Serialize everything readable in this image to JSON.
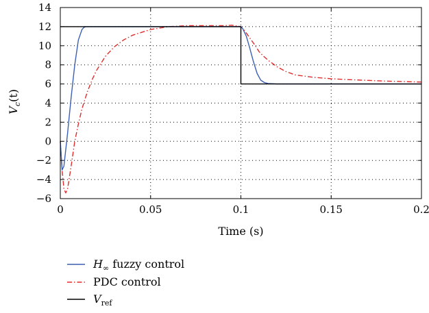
{
  "chart_data": {
    "type": "line",
    "xlabel": "Time (s)",
    "ylabel": {
      "base": "V",
      "sub": "c",
      "arg": "(t)"
    },
    "xlim": [
      0,
      0.2
    ],
    "ylim": [
      -6,
      14
    ],
    "xticks": [
      0,
      0.05,
      0.1,
      0.15,
      0.2
    ],
    "xtick_labels": [
      "0",
      "0.05",
      "0.1",
      "0.15",
      "0.2"
    ],
    "yticks": [
      -6,
      -4,
      -2,
      0,
      2,
      4,
      6,
      8,
      10,
      12,
      14
    ],
    "ytick_labels": [
      "−6",
      "−4",
      "−2",
      "0",
      "2",
      "4",
      "6",
      "8",
      "10",
      "12",
      "14"
    ],
    "grid": true,
    "legend_position": "below",
    "series": [
      {
        "id": "hinf",
        "name": {
          "base": "H",
          "sub": "∞",
          "rest": " fuzzy control"
        },
        "color": "#3a5fb4",
        "style": "solid",
        "x": [
          0,
          0.001,
          0.002,
          0.004,
          0.006,
          0.008,
          0.01,
          0.012,
          0.013,
          0.014,
          0.015,
          0.02,
          0.05,
          0.08,
          0.1,
          0.101,
          0.103,
          0.105,
          0.107,
          0.109,
          0.111,
          0.113,
          0.115,
          0.12,
          0.15,
          0.2
        ],
        "y": [
          0,
          -3.0,
          -2.6,
          0.8,
          4.6,
          8.0,
          10.6,
          11.7,
          11.9,
          12.0,
          12.0,
          12.0,
          12.0,
          12.0,
          12.0,
          11.8,
          11.0,
          9.7,
          8.3,
          7.1,
          6.4,
          6.15,
          6.05,
          6.0,
          6.0,
          6.0
        ]
      },
      {
        "id": "pdc",
        "name": {
          "base": "PDC control",
          "sub": "",
          "rest": ""
        },
        "color": "#e02b2b",
        "style": "dashdot",
        "x": [
          0,
          0.001,
          0.002,
          0.003,
          0.004,
          0.005,
          0.006,
          0.008,
          0.01,
          0.012,
          0.015,
          0.018,
          0.02,
          0.025,
          0.03,
          0.035,
          0.04,
          0.05,
          0.06,
          0.07,
          0.08,
          0.09,
          0.095,
          0.1,
          0.102,
          0.105,
          0.108,
          0.11,
          0.112,
          0.115,
          0.12,
          0.125,
          0.13,
          0.14,
          0.15,
          0.16,
          0.17,
          0.18,
          0.19,
          0.2
        ],
        "y": [
          0,
          -3.0,
          -5.0,
          -5.4,
          -5.0,
          -3.8,
          -2.6,
          0.0,
          1.8,
          3.4,
          5.2,
          6.6,
          7.4,
          8.9,
          9.9,
          10.6,
          11.1,
          11.7,
          12.0,
          12.1,
          12.1,
          12.1,
          12.15,
          12.0,
          11.6,
          10.8,
          10.0,
          9.4,
          9.0,
          8.5,
          7.8,
          7.3,
          6.95,
          6.7,
          6.55,
          6.45,
          6.38,
          6.3,
          6.25,
          6.2
        ]
      },
      {
        "id": "vref",
        "name": {
          "base": "V",
          "sub": "ref",
          "rest": ""
        },
        "color": "#000000",
        "style": "solid",
        "x": [
          0,
          0.1,
          0.1,
          0.2
        ],
        "y": [
          12,
          12,
          6,
          6
        ]
      }
    ]
  }
}
